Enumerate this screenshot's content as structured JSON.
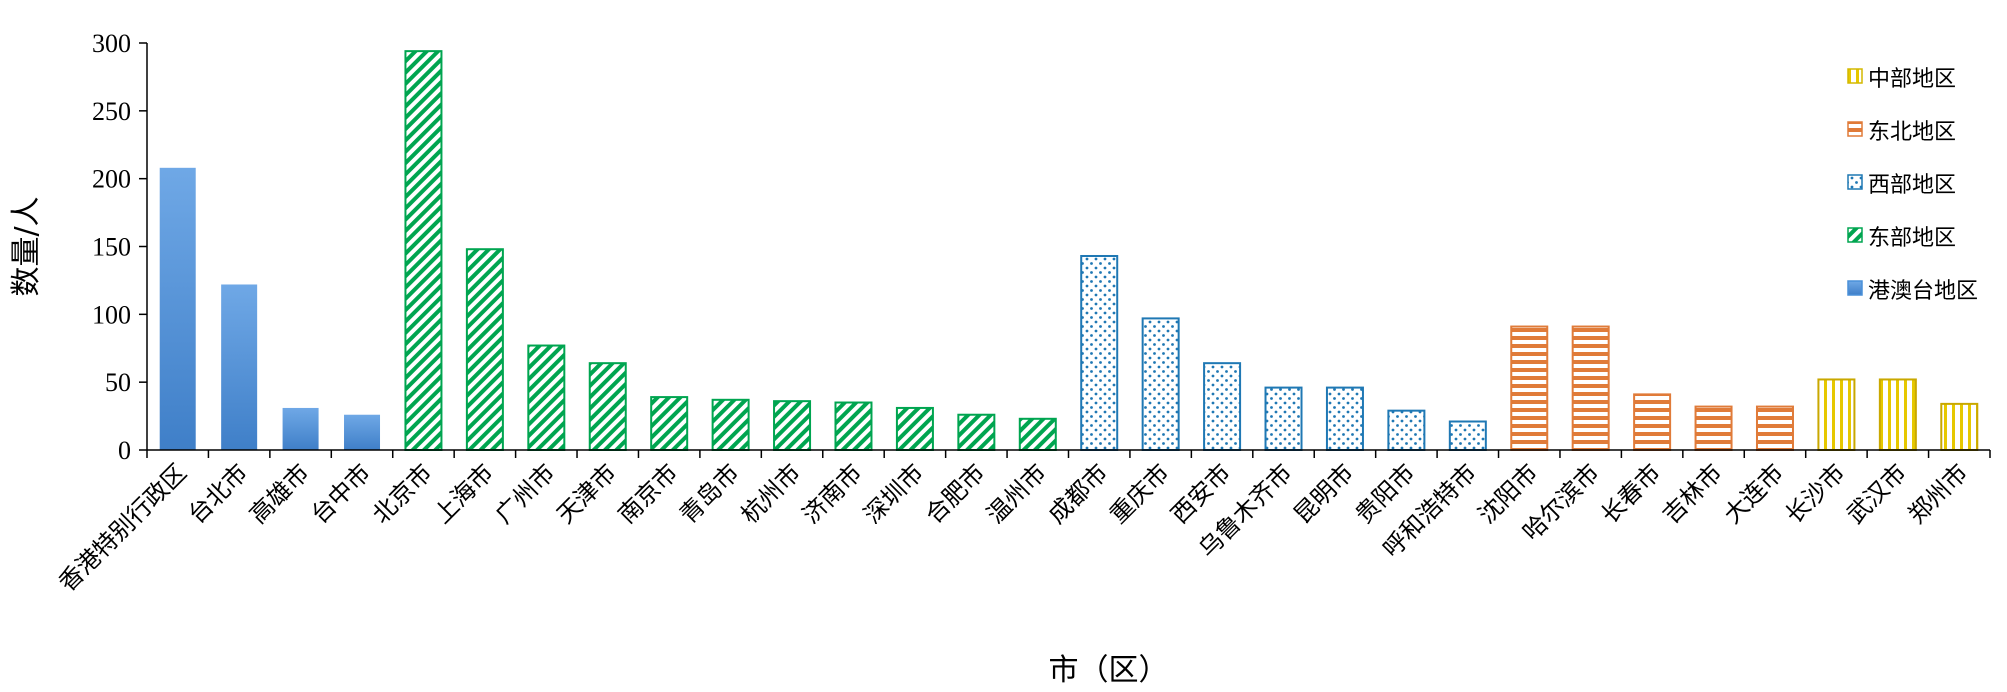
{
  "chart_data": {
    "type": "bar",
    "title": "",
    "xlabel": "市（区）",
    "ylabel": "数量/人",
    "ylim": [
      0,
      300
    ],
    "yticks": [
      0,
      50,
      100,
      150,
      200,
      250,
      300
    ],
    "grid": false,
    "legend_position": "right",
    "categories": [
      "香港特别行政区",
      "台北市",
      "高雄市",
      "台中市",
      "北京市",
      "上海市",
      "广州市",
      "天津市",
      "南京市",
      "青岛市",
      "杭州市",
      "济南市",
      "深圳市",
      "合肥市",
      "温州市",
      "成都市",
      "重庆市",
      "西安市",
      "乌鲁木齐市",
      "昆明市",
      "贵阳市",
      "呼和浩特市",
      "沈阳市",
      "哈尔滨市",
      "长春市",
      "吉林市",
      "大连市",
      "长沙市",
      "武汉市",
      "郑州市"
    ],
    "values": [
      208,
      122,
      31,
      26,
      294,
      148,
      77,
      64,
      39,
      37,
      36,
      35,
      31,
      26,
      23,
      143,
      97,
      64,
      46,
      46,
      29,
      21,
      91,
      91,
      41,
      32,
      32,
      52,
      52,
      34
    ],
    "region_of_category": [
      "港澳台地区",
      "港澳台地区",
      "港澳台地区",
      "港澳台地区",
      "东部地区",
      "东部地区",
      "东部地区",
      "东部地区",
      "东部地区",
      "东部地区",
      "东部地区",
      "东部地区",
      "东部地区",
      "东部地区",
      "东部地区",
      "西部地区",
      "西部地区",
      "西部地区",
      "西部地区",
      "西部地区",
      "西部地区",
      "西部地区",
      "东北地区",
      "东北地区",
      "东北地区",
      "东北地区",
      "东北地区",
      "中部地区",
      "中部地区",
      "中部地区"
    ],
    "legend": [
      {
        "name": "中部地区",
        "color": "#D4B800",
        "pattern": "vertical-stripes"
      },
      {
        "name": "东北地区",
        "color": "#E07B39",
        "pattern": "horizontal-stripes"
      },
      {
        "name": "西部地区",
        "color": "#1F78B4",
        "pattern": "dots"
      },
      {
        "name": "东部地区",
        "color": "#00A550",
        "pattern": "diagonal-stripes"
      },
      {
        "name": "港澳台地区",
        "color": "#4A90D9",
        "pattern": "solid-gradient"
      }
    ]
  }
}
